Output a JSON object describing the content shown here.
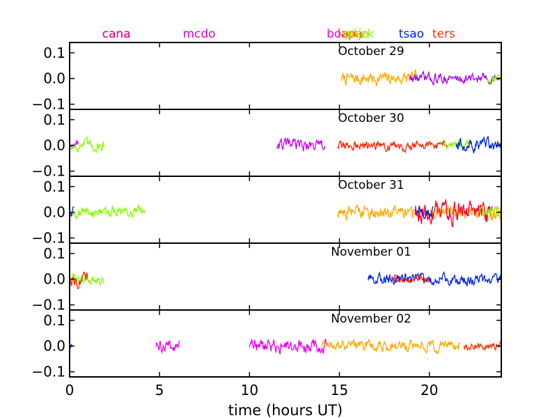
{
  "chart_data": {
    "type": "line",
    "xlabel": "time (hours UT)",
    "xlim": [
      0,
      24
    ],
    "ylim": [
      -0.12,
      0.14
    ],
    "xticks": [
      0,
      5,
      10,
      15,
      20
    ],
    "yticks": [
      0.1,
      0.0,
      -0.1
    ],
    "ytick_labels": [
      "0.1",
      "0.0",
      "−0.1"
    ],
    "grid": false,
    "legend_placement": "top (site names colored by series)",
    "site_labels": [
      {
        "name": "cana",
        "color": "#e8003c",
        "x_hours": 2.6
      },
      {
        "name": "cana",
        "color": "#ff0090",
        "x_hours": 2.6
      },
      {
        "name": "mcdo",
        "color": "#dd00dd",
        "x_hours": 7.2
      },
      {
        "name": "boao",
        "color": "#ff00ff",
        "x_hours": 15.1
      },
      {
        "name": "lapa",
        "color": "#ff3300",
        "x_hours": 15.6
      },
      {
        "name": "mtjo",
        "color": "#ffaa00",
        "x_hours": 15.9
      },
      {
        "name": "piszk",
        "color": "#88ff00",
        "x_hours": 16.1
      },
      {
        "name": "tsao",
        "color": "#0022ee",
        "x_hours": 19.0
      },
      {
        "name": "ters",
        "color": "#ff3300",
        "x_hours": 20.8
      }
    ],
    "panels": [
      {
        "title": "October 29",
        "series": [
          {
            "color": "#ffaa00",
            "x_start": 15.1,
            "x_end": 19.3,
            "amp": 0.018
          },
          {
            "color": "#aa00ee",
            "x_start": 18.9,
            "x_end": 23.9,
            "amp": 0.014
          },
          {
            "color": "#88ff00",
            "x_start": 23.2,
            "x_end": 24.0,
            "amp": 0.012
          }
        ]
      },
      {
        "title": "October 30",
        "series": [
          {
            "color": "#cc00ff",
            "x_start": 0.05,
            "x_end": 0.5,
            "amp": 0.012
          },
          {
            "color": "#88ff00",
            "x_start": 0.1,
            "x_end": 1.9,
            "amp": 0.017
          },
          {
            "color": "#cc00ee",
            "x_start": 11.5,
            "x_end": 14.2,
            "amp": 0.017
          },
          {
            "color": "#ff2200",
            "x_start": 14.9,
            "x_end": 21.0,
            "amp": 0.013
          },
          {
            "color": "#88ff00",
            "x_start": 20.8,
            "x_end": 22.3,
            "amp": 0.014
          },
          {
            "color": "#0022ee",
            "x_start": 21.5,
            "x_end": 24.0,
            "amp": 0.019
          }
        ]
      },
      {
        "title": "October 31",
        "series": [
          {
            "color": "#0022ee",
            "x_start": 0.0,
            "x_end": 0.25,
            "amp": 0.015
          },
          {
            "color": "#88ff00",
            "x_start": 0.2,
            "x_end": 4.2,
            "amp": 0.015
          },
          {
            "color": "#ffaa00",
            "x_start": 14.9,
            "x_end": 24.0,
            "amp": 0.02
          },
          {
            "color": "#ff0033",
            "x_start": 19.2,
            "x_end": 23.5,
            "amp": 0.032
          },
          {
            "color": "#0022ee",
            "x_start": 19.3,
            "x_end": 20.2,
            "amp": 0.018
          },
          {
            "color": "#88ff00",
            "x_start": 22.7,
            "x_end": 24.0,
            "amp": 0.016
          }
        ]
      },
      {
        "title": "November 01",
        "series": [
          {
            "color": "#88ff00",
            "x_start": 0.05,
            "x_end": 1.9,
            "amp": 0.016
          },
          {
            "color": "#ff2200",
            "x_start": 0.05,
            "x_end": 1.0,
            "amp": 0.018
          },
          {
            "color": "#0022ee",
            "x_start": 16.6,
            "x_end": 24.0,
            "amp": 0.016
          },
          {
            "color": "#ff2200",
            "x_start": 17.9,
            "x_end": 20.0,
            "amp": 0.01
          }
        ]
      },
      {
        "title": "November 02",
        "series": [
          {
            "color": "#0022ee",
            "x_start": 0.0,
            "x_end": 0.15,
            "amp": 0.006
          },
          {
            "color": "#ee00ee",
            "x_start": 4.8,
            "x_end": 6.1,
            "amp": 0.017
          },
          {
            "color": "#ee00ee",
            "x_start": 10.0,
            "x_end": 14.3,
            "amp": 0.02
          },
          {
            "color": "#ffaa00",
            "x_start": 14.0,
            "x_end": 21.7,
            "amp": 0.015
          },
          {
            "color": "#ff3300",
            "x_start": 21.9,
            "x_end": 24.0,
            "amp": 0.012
          }
        ]
      }
    ]
  }
}
